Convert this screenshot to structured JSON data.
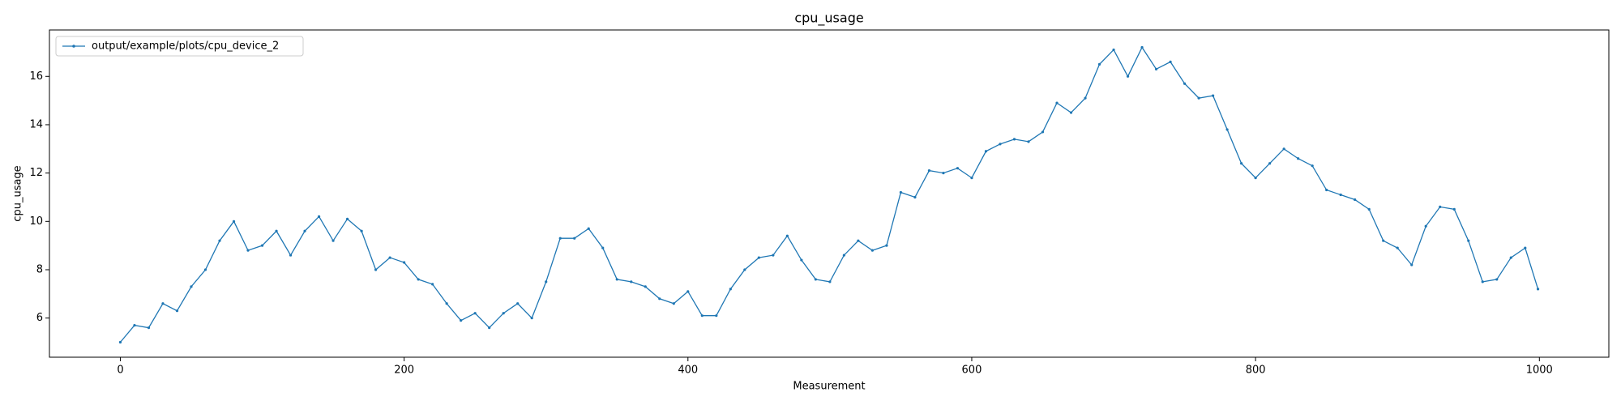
{
  "chart_data": {
    "type": "line",
    "title": "cpu_usage",
    "xlabel": "Measurement",
    "ylabel": "cpu_usage",
    "x": [
      0,
      10,
      20,
      30,
      40,
      50,
      60,
      70,
      80,
      90,
      100,
      110,
      120,
      130,
      140,
      150,
      160,
      170,
      180,
      190,
      200,
      210,
      220,
      230,
      240,
      250,
      260,
      270,
      280,
      290,
      300,
      310,
      320,
      330,
      340,
      350,
      360,
      370,
      380,
      390,
      400,
      410,
      420,
      430,
      440,
      450,
      460,
      470,
      480,
      490,
      500,
      510,
      520,
      530,
      540,
      550,
      560,
      570,
      580,
      590,
      600,
      610,
      620,
      630,
      640,
      650,
      660,
      670,
      680,
      690,
      700,
      710,
      720,
      730,
      740,
      750,
      760,
      770,
      780,
      790,
      800,
      810,
      820,
      830,
      840,
      850,
      860,
      870,
      880,
      890,
      900,
      910,
      920,
      930,
      940,
      950,
      960,
      970,
      980,
      990,
      999
    ],
    "series": [
      {
        "name": "output/example/plots/cpu_device_2",
        "color": "#1f77b4",
        "values": [
          5.0,
          5.7,
          5.6,
          6.6,
          6.3,
          7.3,
          8.0,
          9.2,
          10.0,
          8.8,
          9.0,
          9.6,
          8.6,
          9.6,
          10.2,
          9.2,
          10.1,
          9.6,
          8.0,
          8.5,
          8.3,
          7.6,
          7.4,
          6.6,
          5.9,
          6.2,
          5.6,
          6.2,
          6.6,
          6.0,
          7.5,
          9.3,
          9.3,
          9.7,
          8.9,
          7.6,
          7.5,
          7.3,
          6.8,
          6.6,
          7.1,
          6.1,
          6.1,
          7.2,
          8.0,
          8.5,
          8.6,
          9.4,
          8.4,
          7.6,
          7.5,
          8.6,
          9.2,
          8.8,
          9.0,
          11.2,
          11.0,
          12.1,
          12.0,
          12.2,
          11.8,
          12.9,
          13.2,
          13.4,
          13.3,
          13.7,
          14.9,
          14.5,
          15.1,
          16.5,
          17.1,
          16.0,
          17.2,
          16.3,
          16.6,
          15.7,
          15.1,
          15.2,
          13.8,
          12.4,
          11.8,
          12.4,
          13.0,
          12.6,
          12.3,
          11.3,
          11.1,
          10.9,
          10.5,
          9.2,
          8.9,
          8.2,
          9.8,
          10.6,
          10.5,
          9.2,
          7.5,
          7.6,
          8.5,
          8.9,
          7.2
        ]
      }
    ],
    "xlim": [
      -49.95,
      1048.95
    ],
    "ylim": [
      4.38,
      17.92
    ],
    "xticks": [
      0,
      200,
      400,
      600,
      800,
      1000
    ],
    "yticks": [
      6,
      8,
      10,
      12,
      14,
      16
    ],
    "legend": "upper left"
  }
}
